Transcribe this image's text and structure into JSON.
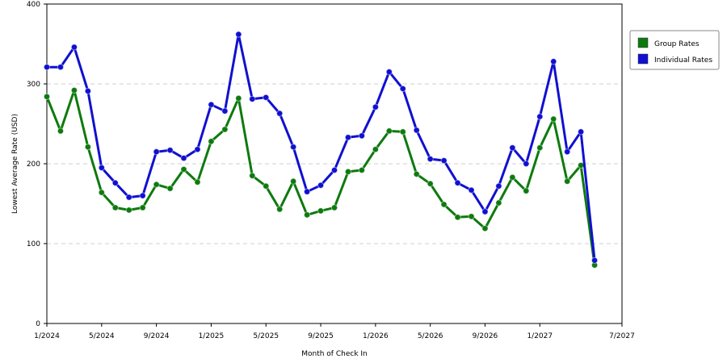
{
  "chart_data": {
    "type": "line",
    "title": "",
    "xlabel": "Month of Check In",
    "ylabel": "Lowest Average Rate (USD)",
    "ylim": [
      0,
      400
    ],
    "yticks": [
      "0",
      "100",
      "200",
      "300",
      "400"
    ],
    "xlim": [
      "1/2024",
      "7/2027"
    ],
    "xticks": [
      "1/2024",
      "5/2024",
      "9/2024",
      "1/2025",
      "5/2025",
      "9/2025",
      "1/2026",
      "5/2026",
      "9/2026",
      "1/2027",
      "7/2027"
    ],
    "grid": "horizontal dashed",
    "legend_position": "top-right",
    "x": [
      "1/2024",
      "2/2024",
      "3/2024",
      "4/2024",
      "5/2024",
      "6/2024",
      "7/2024",
      "8/2024",
      "9/2024",
      "10/2024",
      "11/2024",
      "12/2024",
      "1/2025",
      "2/2025",
      "3/2025",
      "4/2025",
      "5/2025",
      "6/2025",
      "7/2025",
      "8/2025",
      "9/2025",
      "10/2025",
      "11/2025",
      "12/2025",
      "1/2026",
      "2/2026",
      "3/2026",
      "4/2026",
      "5/2026",
      "6/2026",
      "7/2026",
      "8/2026",
      "9/2026",
      "10/2026",
      "11/2026",
      "12/2026",
      "1/2027",
      "2/2027",
      "3/2027",
      "4/2027",
      "5/2027",
      "6/2027",
      "7/2027"
    ],
    "series": [
      {
        "name": "Group Rates",
        "color": "#0e7a0e",
        "values": [
          284,
          241,
          292,
          221,
          164,
          145,
          142,
          145,
          174,
          169,
          193,
          177,
          228,
          243,
          282,
          185,
          172,
          143,
          178,
          136,
          141,
          145,
          190,
          192,
          218,
          241,
          240,
          187,
          175,
          149,
          133,
          134,
          119,
          151,
          183,
          166,
          220,
          256,
          178,
          198,
          73,
          null,
          null
        ]
      },
      {
        "name": "Individual Rates",
        "color": "#1010d0",
        "values": [
          321,
          321,
          346,
          291,
          195,
          176,
          158,
          160,
          215,
          217,
          207,
          218,
          274,
          266,
          362,
          281,
          283,
          263,
          221,
          165,
          173,
          192,
          233,
          235,
          271,
          315,
          294,
          242,
          206,
          204,
          176,
          167,
          140,
          172,
          220,
          200,
          259,
          328,
          215,
          240,
          79,
          null,
          null
        ]
      }
    ]
  }
}
